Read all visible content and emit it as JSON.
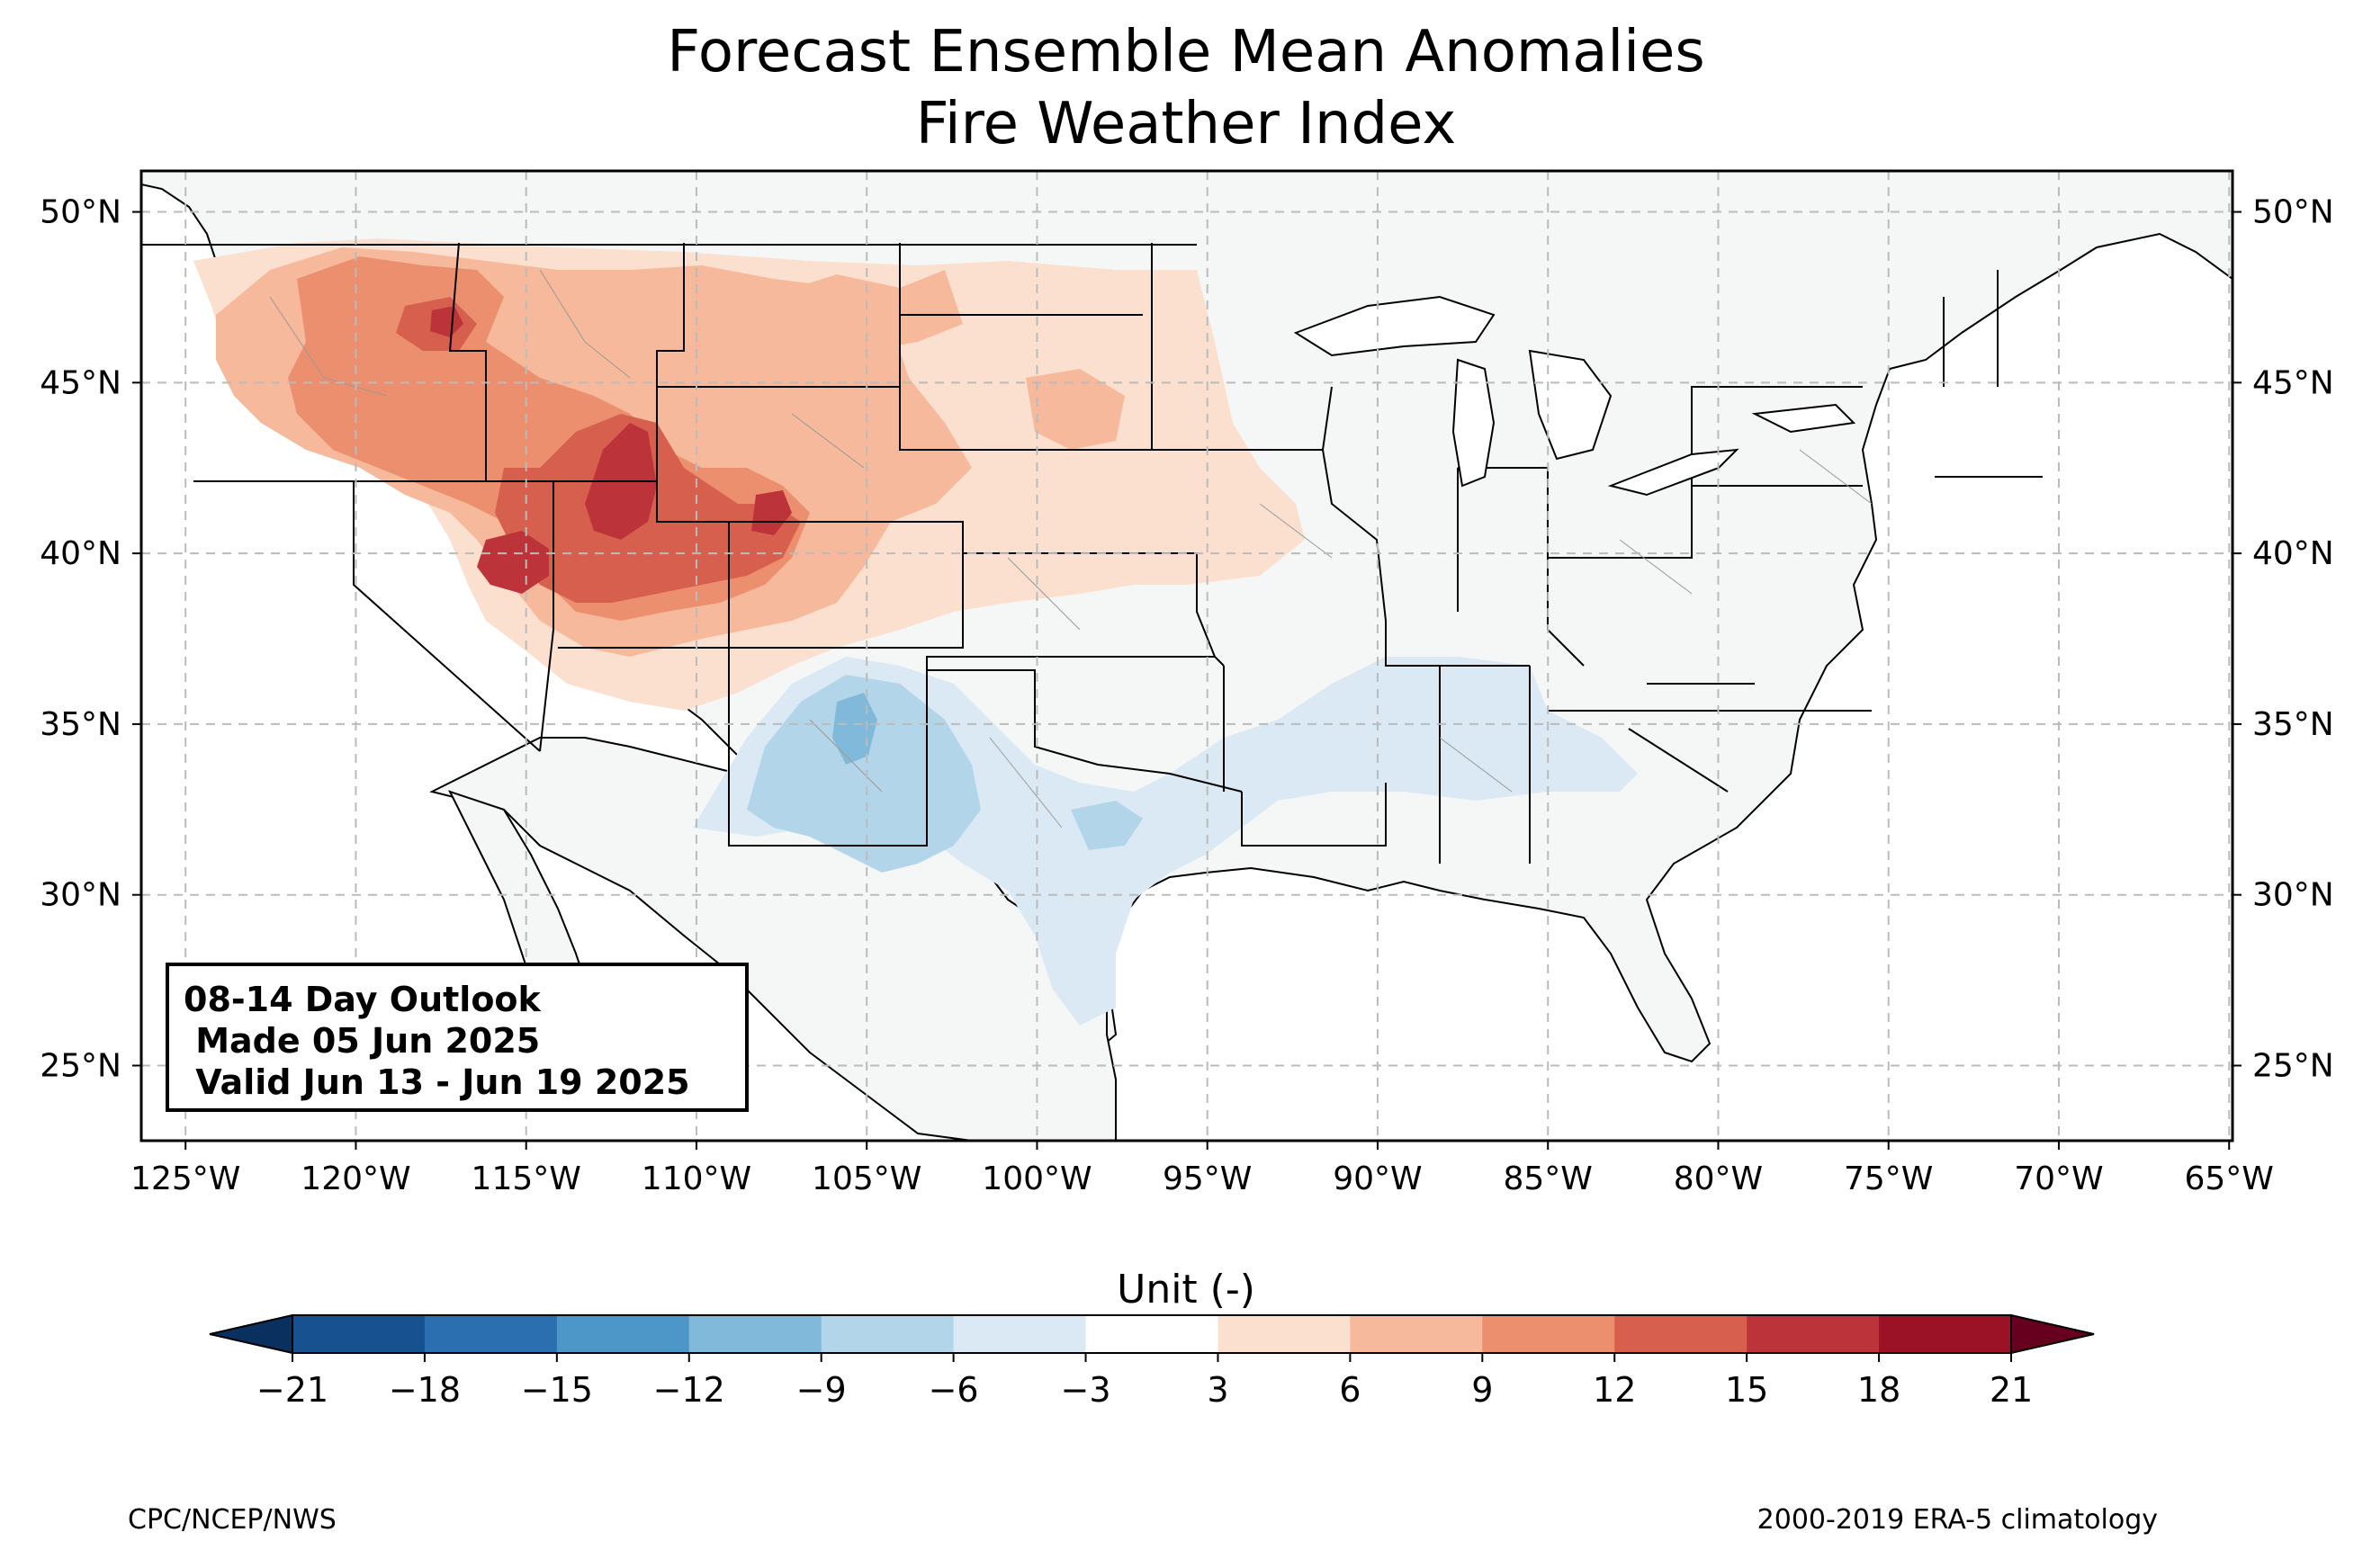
{
  "title_line1": "Forecast Ensemble Mean Anomalies",
  "title_line2": "Fire Weather Index",
  "outlook": {
    "line1": "08-14 Day Outlook",
    "line2": " Made 05 Jun 2025",
    "line3": " Valid Jun 13 - Jun 19 2025"
  },
  "lat_labels": [
    "50°N",
    "45°N",
    "40°N",
    "35°N",
    "30°N",
    "25°N"
  ],
  "lat_values": [
    50,
    45,
    40,
    35,
    30,
    25
  ],
  "lon_labels": [
    "125°W",
    "120°W",
    "115°W",
    "110°W",
    "105°W",
    "100°W",
    "95°W",
    "90°W",
    "85°W",
    "80°W",
    "75°W",
    "70°W",
    "65°W"
  ],
  "lon_values": [
    -125,
    -120,
    -115,
    -110,
    -105,
    -100,
    -95,
    -90,
    -85,
    -80,
    -75,
    -70,
    -65
  ],
  "map_extent": {
    "lon_min": -126.3,
    "lon_max": -64.9,
    "lat_min": 22.8,
    "lat_max": 51.2
  },
  "colorbar": {
    "title": "Unit (-)",
    "ticks": [
      "−21",
      "−18",
      "−15",
      "−12",
      "−9",
      "−6",
      "−3",
      "3",
      "6",
      "9",
      "12",
      "15",
      "18",
      "21"
    ],
    "colors": [
      "#175190",
      "#2c6fb0",
      "#4c97c7",
      "#80b9d9",
      "#b3d5ea",
      "#dae9f3",
      "#ffffff",
      "#fbe0d0",
      "#f7b99b",
      "#eb8f6f",
      "#d6604d",
      "#bd333a",
      "#9b1126"
    ],
    "under_color": "#09305e",
    "over_color": "#67001f"
  },
  "anomaly_fills": [
    {
      "level": 3,
      "color": "#fbe0d0"
    },
    {
      "level": 6,
      "color": "#f7b99b"
    },
    {
      "level": 9,
      "color": "#eb8f6f"
    },
    {
      "level": 12,
      "color": "#d6604d"
    },
    {
      "level": 15,
      "color": "#bd333a"
    },
    {
      "level": -3,
      "color": "#dae9f3"
    },
    {
      "level": -6,
      "color": "#b3d5ea"
    }
  ],
  "land_color": "#f5f7f7",
  "footer_left": "CPC/NCEP/NWS",
  "footer_right": "2000-2019 ERA-5 climatology"
}
